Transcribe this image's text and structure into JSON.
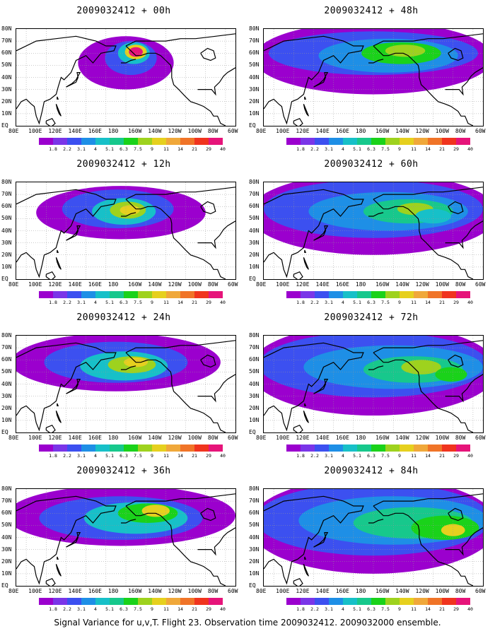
{
  "caption": "Signal Variance for u,v,T. Flight 23. Observation time 2009032412. 2009032000 ensemble.",
  "lat_labels": [
    "80N",
    "70N",
    "60N",
    "50N",
    "40N",
    "30N",
    "20N",
    "10N",
    "EQ"
  ],
  "lon_labels": [
    "80E",
    "100E",
    "120E",
    "140E",
    "160E",
    "180",
    "160W",
    "140W",
    "120W",
    "100W",
    "80W",
    "60W"
  ],
  "colorbar": {
    "colors": [
      "#9b00ce",
      "#7a35e8",
      "#3c50f0",
      "#1e8fe6",
      "#17c0c8",
      "#17c88c",
      "#1ad21a",
      "#9ed21e",
      "#e6d01e",
      "#f0a83a",
      "#f07428",
      "#f0341e",
      "#e6147a"
    ],
    "labels": [
      "1.8",
      "2.2",
      "3.1",
      "4",
      "5.1",
      "6.3",
      "7.5",
      "9",
      "11",
      "14",
      "21",
      "29",
      "40"
    ]
  },
  "panels": [
    {
      "title": "2009032412 + 00h",
      "forecast_hour": 0
    },
    {
      "title": "2009032412 + 48h",
      "forecast_hour": 48
    },
    {
      "title": "2009032412 + 12h",
      "forecast_hour": 12
    },
    {
      "title": "2009032412 + 60h",
      "forecast_hour": 60
    },
    {
      "title": "2009032412 + 24h",
      "forecast_hour": 24
    },
    {
      "title": "2009032412 + 72h",
      "forecast_hour": 72
    },
    {
      "title": "2009032412 + 36h",
      "forecast_hour": 36
    },
    {
      "title": "2009032412 + 84h",
      "forecast_hour": 84
    }
  ]
}
